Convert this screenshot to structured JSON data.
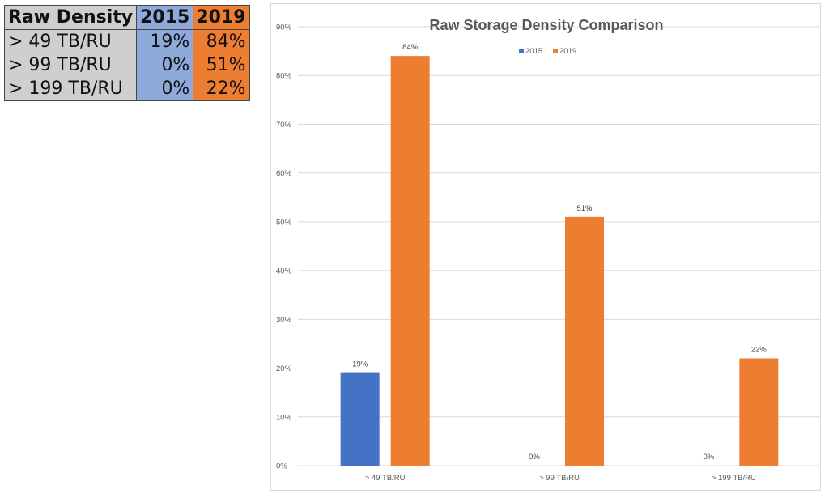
{
  "table": {
    "headers": [
      "Raw Density",
      "2015",
      "2019"
    ],
    "rows": [
      [
        "> 49 TB/RU",
        "19%",
        "84%"
      ],
      [
        "> 99 TB/RU",
        "0%",
        "51%"
      ],
      [
        "> 199 TB/RU",
        "0%",
        "22%"
      ]
    ]
  },
  "chart_data": {
    "type": "bar",
    "title": "Raw Storage Density Comparison",
    "xlabel": "",
    "ylabel": "",
    "categories": [
      "> 49 TB/RU",
      "> 99 TB/RU",
      "> 199 TB/RU"
    ],
    "series": [
      {
        "name": "2015",
        "color": "#4472c4",
        "values": [
          19,
          0,
          0
        ]
      },
      {
        "name": "2019",
        "color": "#ed7d31",
        "values": [
          84,
          51,
          22
        ]
      }
    ],
    "ylim": [
      0,
      90
    ],
    "yticks": [
      0,
      10,
      20,
      30,
      40,
      50,
      60,
      70,
      80,
      90
    ],
    "ytick_format": "percent",
    "grid": true,
    "legend": "top-center",
    "data_labels": true
  }
}
